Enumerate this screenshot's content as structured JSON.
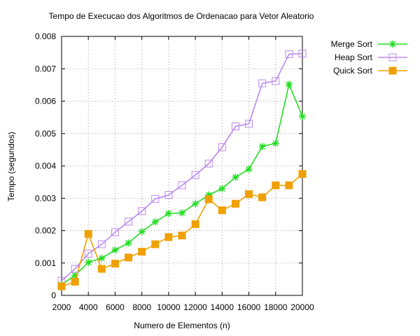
{
  "chart_data": {
    "type": "line",
    "title": "Tempo de Execucao dos Algoritmos de Ordenacao para Vetor Aleatorio",
    "xlabel": "Numero de Elementos (n)",
    "ylabel": "Tempo (segundos)",
    "xlim": [
      2000,
      20000
    ],
    "ylim": [
      0,
      0.008
    ],
    "xticks": [
      2000,
      4000,
      6000,
      8000,
      10000,
      12000,
      14000,
      16000,
      18000,
      20000
    ],
    "yticks": [
      0,
      0.001,
      0.002,
      0.003,
      0.004,
      0.005,
      0.006,
      0.007,
      0.008
    ],
    "grid": true,
    "legend_position": "outside-right",
    "x": [
      2000,
      3000,
      4000,
      5000,
      6000,
      7000,
      8000,
      9000,
      10000,
      11000,
      12000,
      13000,
      14000,
      15000,
      16000,
      17000,
      18000,
      19000,
      20000
    ],
    "series": [
      {
        "name": "Merge Sort",
        "color": "#22dd22",
        "marker": "asterisk",
        "values": [
          0.00033,
          0.00062,
          0.00102,
          0.00115,
          0.0014,
          0.00162,
          0.00197,
          0.00227,
          0.00253,
          0.00255,
          0.00283,
          0.0031,
          0.0033,
          0.00365,
          0.0039,
          0.0046,
          0.0047,
          0.00652,
          0.00553
        ]
      },
      {
        "name": "Heap Sort",
        "color": "#bb88ee",
        "marker": "open-square",
        "values": [
          0.00045,
          0.00082,
          0.00129,
          0.00158,
          0.00195,
          0.00228,
          0.0026,
          0.00298,
          0.0031,
          0.0034,
          0.00372,
          0.00407,
          0.00458,
          0.00522,
          0.0053,
          0.00655,
          0.00662,
          0.00745,
          0.00747
        ]
      },
      {
        "name": "Quick Sort",
        "color": "#f0a000",
        "marker": "filled-square",
        "values": [
          0.00028,
          0.00042,
          0.0019,
          0.00082,
          0.00098,
          0.00117,
          0.00135,
          0.00158,
          0.0018,
          0.00185,
          0.0022,
          0.00297,
          0.00263,
          0.00283,
          0.00313,
          0.00303,
          0.0034,
          0.0034,
          0.00375
        ]
      }
    ]
  }
}
